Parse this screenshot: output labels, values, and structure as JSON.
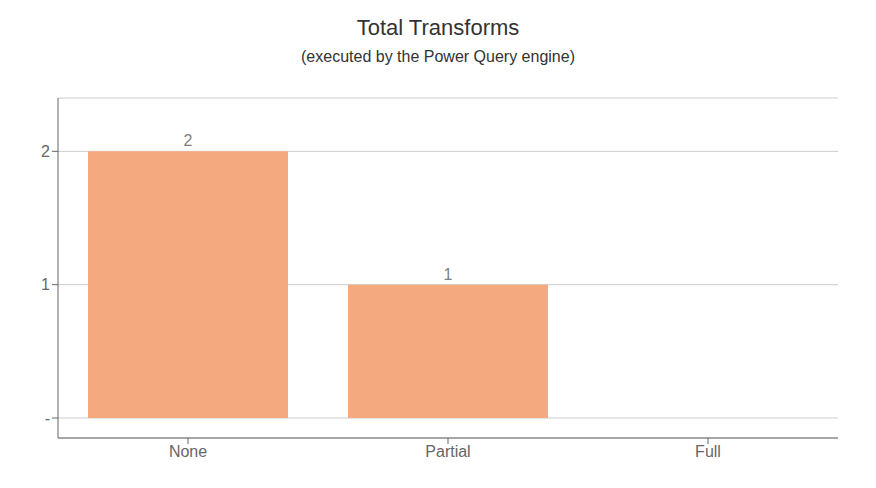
{
  "chart_data": {
    "type": "bar",
    "title": "Total Transforms",
    "subtitle": "(executed by the Power Query engine)",
    "categories": [
      "None",
      "Partial",
      "Full"
    ],
    "values": [
      2,
      1,
      0
    ],
    "color": "#F4A97F",
    "ylim": [
      -0.15,
      2.4
    ],
    "yticks": [
      {
        "value": 0,
        "label": "-"
      },
      1,
      2
    ],
    "grid": true,
    "data_labels": true
  }
}
